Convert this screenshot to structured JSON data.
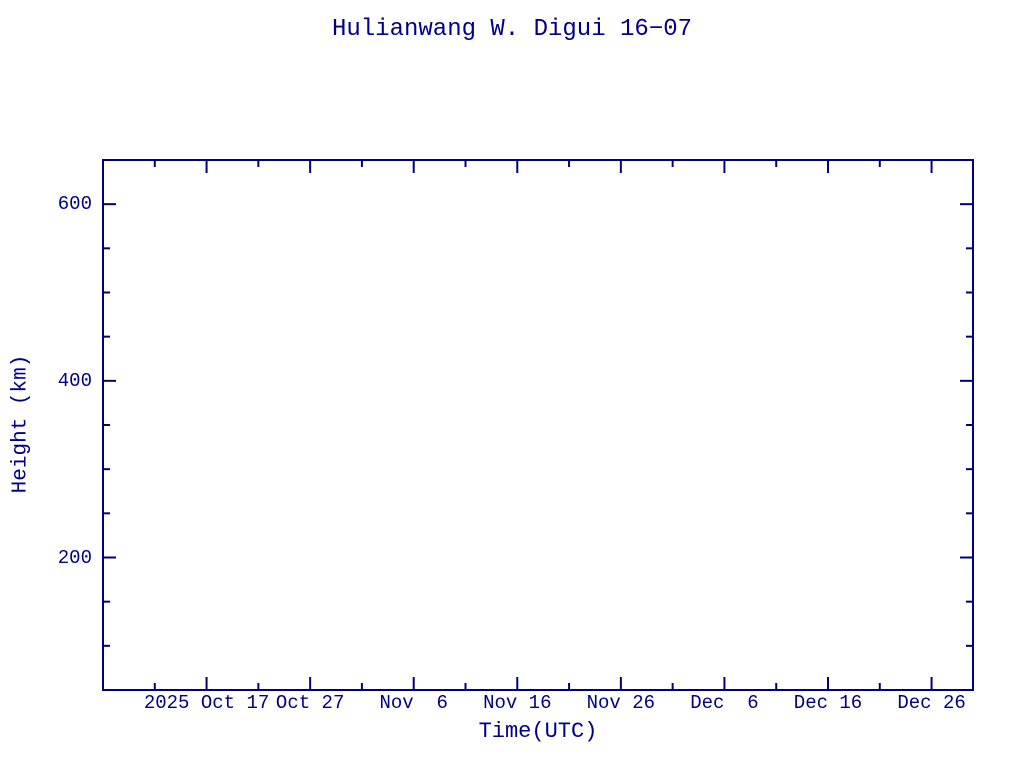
{
  "chart_data": {
    "type": "scatter",
    "title": "Hulianwang W. Digui 16−07",
    "xlabel": "Time(UTC)",
    "ylabel": "Height (km)",
    "series": [],
    "notes": "plot area is empty - no data points drawn",
    "x_axis": {
      "range_days": [
        0,
        84
      ],
      "major_ticks": [
        {
          "day": 10,
          "label": "2025 Oct 17"
        },
        {
          "day": 20,
          "label": "Oct 27"
        },
        {
          "day": 30,
          "label": "Nov  6"
        },
        {
          "day": 40,
          "label": "Nov 16"
        },
        {
          "day": 50,
          "label": "Nov 26"
        },
        {
          "day": 60,
          "label": "Dec  6"
        },
        {
          "day": 70,
          "label": "Dec 16"
        },
        {
          "day": 80,
          "label": "Dec 26"
        }
      ],
      "minor_tick_days": [
        5,
        15,
        25,
        35,
        45,
        55,
        65,
        75
      ]
    },
    "y_axis": {
      "range": [
        50,
        650
      ],
      "major_ticks": [
        {
          "value": 200,
          "label": "200"
        },
        {
          "value": 400,
          "label": "400"
        },
        {
          "value": 600,
          "label": "600"
        }
      ],
      "minor_tick_values": [
        100,
        150,
        250,
        300,
        350,
        450,
        500,
        550
      ]
    },
    "layout": {
      "grid": false,
      "legend": "none",
      "tick_direction": "inward, mirrored on all four sides"
    },
    "colors": {
      "axis": "#000080",
      "text": "#00008B",
      "background": "#ffffff"
    }
  }
}
